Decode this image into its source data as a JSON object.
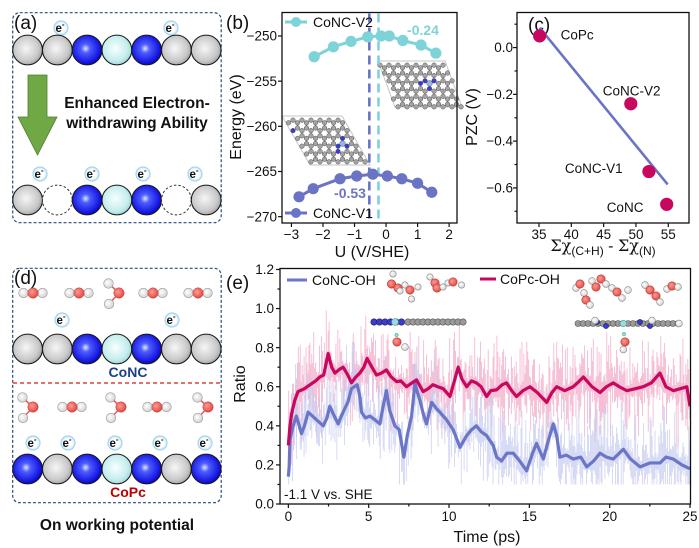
{
  "panels": {
    "a": "(a)",
    "b": "(b)",
    "c": "(c)",
    "d": "(d)",
    "e": "(e)"
  },
  "colors": {
    "frame": "#2b4c7e",
    "arrow": "#6fa845",
    "conc_label": "#1c3f8a",
    "copc_label": "#c00000",
    "divider": "#d9443a"
  },
  "panel_a": {
    "electron": {
      "symbol": "e",
      "charge": "-"
    },
    "top_row": [
      "gray",
      "gray",
      "blue",
      "cyan",
      "blue",
      "gray",
      "gray"
    ],
    "bottom_row": [
      "gray",
      "vacancy",
      "blue",
      "cyan",
      "blue",
      "vacancy",
      "gray"
    ],
    "top_electrons": 2,
    "bottom_electrons": 4,
    "caption_line1": "Enhanced Electron-",
    "caption_line2": "withdrawing Ability"
  },
  "panel_d": {
    "electron": {
      "symbol": "e",
      "charge": "-"
    },
    "top_row": [
      "gray",
      "gray",
      "blue",
      "cyan",
      "blue",
      "gray",
      "gray"
    ],
    "bottom_row": [
      "blue",
      "gray",
      "blue",
      "cyan",
      "blue",
      "gray",
      "blue"
    ],
    "top_waters": [
      "linear",
      "linear",
      "bent",
      "linear",
      "linear"
    ],
    "bottom_waters": [
      "bent",
      "linear",
      "bent",
      "linear",
      "bent"
    ],
    "top_electrons": 2,
    "bottom_electrons": 5,
    "top_label": "CoNC",
    "bottom_label": "CoPc",
    "caption": "On working potential"
  },
  "chart_data": [
    {
      "panel": "(b)",
      "type": "line",
      "title": "",
      "xlabel": "U (V/SHE)",
      "ylabel": "Energy (eV)",
      "xlim": [
        -3.3,
        2.25
      ],
      "ylim": [
        -270.7,
        -247.4
      ],
      "xticks": [
        -3,
        -2,
        -1,
        0,
        1,
        2
      ],
      "xticklabels": [
        "−3",
        "−2",
        "−1",
        "0",
        "1",
        "2"
      ],
      "yticks": [
        -250,
        -255,
        -260,
        -265,
        -270
      ],
      "yticklabels": [
        "−250",
        "−255",
        "−260",
        "−265",
        "−270"
      ],
      "grid": false,
      "series": [
        {
          "name": "CoNC-V2",
          "color": "#7ed3d9",
          "x": [
            -2.28,
            -1.67,
            -1.11,
            -0.58,
            -0.16,
            0.1,
            0.53,
            1.11,
            1.58
          ],
          "y": [
            -252.3,
            -251.2,
            -250.6,
            -250.1,
            -250.0,
            -250.0,
            -250.5,
            -251.0,
            -251.9
          ]
        },
        {
          "name": "CoNC-V1",
          "color": "#6b74c4",
          "x": [
            -2.76,
            -2.31,
            -1.46,
            -0.93,
            -0.42,
            0.04,
            0.5,
            1.0,
            1.45
          ],
          "y": [
            -267.8,
            -266.9,
            -265.8,
            -265.5,
            -265.3,
            -265.5,
            -265.8,
            -266.3,
            -267.3
          ]
        }
      ],
      "vlines": [
        {
          "x": -0.53,
          "label": "-0.53",
          "color": "#6b74c4"
        },
        {
          "x": -0.24,
          "label": "-0.24",
          "color": "#7ed3d9"
        }
      ],
      "legend": "top-left (CoNC-V2), bottom-left (CoNC-V1)"
    },
    {
      "panel": "(c)",
      "type": "scatter",
      "title": "",
      "xlabel": {
        "sum1": "Σχ",
        "sub1": "(C+H)",
        "minus": " - ",
        "sum2": "Σχ",
        "sub2": "(N)"
      },
      "ylabel": "PZC (V)",
      "xlim": [
        31.6,
        58.2
      ],
      "ylim": [
        -0.75,
        0.15
      ],
      "xticks": [
        35,
        40,
        45,
        50,
        55
      ],
      "xticklabels": [
        "35",
        "40",
        "45",
        "50",
        "55"
      ],
      "yticks": [
        0.0,
        -0.2,
        -0.4,
        -0.6
      ],
      "yticklabels": [
        "0.0",
        "−0.2",
        "−0.4",
        "−0.6"
      ],
      "yminor": [
        0.1,
        -0.1,
        -0.3,
        -0.5,
        -0.7
      ],
      "grid": false,
      "point_color": "#c8075e",
      "points": [
        {
          "label": "CoPc",
          "x": 35.1,
          "y": 0.05
        },
        {
          "label": "CoNC-V2",
          "x": 49.2,
          "y": -0.24
        },
        {
          "label": "CoNC-V1",
          "x": 52.0,
          "y": -0.53
        },
        {
          "label": "CoNC",
          "x": 54.75,
          "y": -0.67
        }
      ],
      "fit_line": {
        "x": [
          35.1,
          54.9
        ],
        "y": [
          0.085,
          -0.585
        ],
        "color": "#6b74c4"
      }
    },
    {
      "panel": "(e)",
      "type": "line",
      "title": "",
      "xlabel": "Time (ps)",
      "ylabel": "Ratio",
      "xlim": [
        -0.52,
        25.03
      ],
      "ylim": [
        0,
        1.205
      ],
      "xticks": [
        0,
        5,
        10,
        15,
        20,
        25
      ],
      "xticklabels": [
        "0",
        "5",
        "10",
        "15",
        "20",
        "25"
      ],
      "xminor": [
        2.5,
        7.5,
        12.5,
        17.5,
        22.5
      ],
      "yticks": [
        0.0,
        0.2,
        0.4,
        0.6,
        0.8,
        1.0,
        1.2
      ],
      "yticklabels": [
        "0.0",
        "0.2",
        "0.4",
        "0.6",
        "0.8",
        "1.0",
        "1.2"
      ],
      "yminor": [
        0.1,
        0.3,
        0.5,
        0.7,
        0.9,
        1.1
      ],
      "grid": false,
      "annotation": "-1.1 V vs. SHE",
      "legend": "top",
      "series": [
        {
          "name": "CoNC-OH",
          "color": "#6b76c6",
          "raw_color": "#c3c9ef",
          "t": [
            0,
            0.05,
            0.1,
            0.3,
            0.5,
            0.82,
            1.0,
            1.23,
            1.5,
            1.76,
            2.17,
            2.4,
            2.58,
            2.8,
            3.1,
            3.3,
            3.52,
            3.7,
            3.93,
            4.1,
            4.29,
            4.45,
            4.55,
            4.8,
            5.07,
            5.4,
            5.7,
            5.9,
            6.1,
            6.3,
            6.63,
            6.9,
            7.19,
            7.4,
            7.67,
            7.88,
            8.0,
            8.19,
            8.4,
            8.6,
            8.92,
            9.2,
            9.43,
            9.85,
            10.26,
            10.68,
            11.1,
            11.4,
            11.7,
            12.0,
            12.34,
            12.75,
            12.96,
            13.27,
            13.6,
            14.0,
            14.4,
            14.83,
            15.2,
            15.45,
            15.87,
            16.2,
            16.49,
            16.7,
            16.9,
            17.3,
            17.73,
            18.2,
            18.57,
            19.0,
            19.4,
            19.8,
            20.22,
            20.85,
            21.3,
            21.89,
            22.5,
            23.13,
            23.5,
            23.96,
            24.5,
            25.0
          ],
          "ratio": [
            0.14,
            0.19,
            0.33,
            0.4,
            0.45,
            0.36,
            0.4,
            0.47,
            0.45,
            0.43,
            0.4,
            0.44,
            0.5,
            0.46,
            0.41,
            0.45,
            0.49,
            0.52,
            0.59,
            0.6,
            0.61,
            0.55,
            0.47,
            0.44,
            0.45,
            0.43,
            0.41,
            0.5,
            0.58,
            0.48,
            0.4,
            0.38,
            0.24,
            0.35,
            0.45,
            0.62,
            0.58,
            0.53,
            0.46,
            0.41,
            0.52,
            0.49,
            0.47,
            0.43,
            0.38,
            0.29,
            0.35,
            0.38,
            0.4,
            0.37,
            0.35,
            0.3,
            0.24,
            0.22,
            0.26,
            0.26,
            0.22,
            0.17,
            0.26,
            0.31,
            0.23,
            0.33,
            0.41,
            0.35,
            0.24,
            0.25,
            0.23,
            0.24,
            0.19,
            0.22,
            0.26,
            0.24,
            0.23,
            0.28,
            0.23,
            0.19,
            0.21,
            0.21,
            0.24,
            0.23,
            0.2,
            0.18
          ]
        },
        {
          "name": "CoPc-OH",
          "color": "#c8075e",
          "raw_color": "#f2a2c2",
          "t": [
            0,
            0.1,
            0.2,
            0.4,
            0.6,
            1.0,
            1.34,
            1.7,
            1.96,
            2.2,
            2.48,
            2.7,
            2.9,
            3.2,
            3.41,
            3.7,
            3.93,
            4.2,
            4.45,
            4.7,
            4.9,
            5.2,
            5.49,
            5.8,
            6.1,
            6.4,
            6.74,
            7.0,
            7.36,
            7.7,
            7.98,
            8.39,
            8.7,
            9.0,
            9.3,
            9.64,
            10.06,
            10.3,
            10.57,
            10.8,
            11.1,
            11.4,
            11.7,
            12.0,
            12.34,
            12.6,
            12.96,
            13.3,
            13.58,
            13.9,
            14.2,
            14.6,
            15.04,
            15.5,
            16.08,
            16.4,
            16.7,
            17.2,
            17.73,
            18.0,
            18.36,
            18.9,
            19.4,
            19.8,
            20.22,
            20.6,
            21.06,
            21.6,
            22.09,
            22.6,
            23.13,
            23.5,
            23.96,
            24.4,
            24.8,
            25.0
          ],
          "ratio": [
            0.3,
            0.4,
            0.46,
            0.53,
            0.575,
            0.59,
            0.61,
            0.63,
            0.65,
            0.66,
            0.77,
            0.7,
            0.67,
            0.69,
            0.7,
            0.66,
            0.62,
            0.65,
            0.67,
            0.7,
            0.745,
            0.7,
            0.66,
            0.67,
            0.686,
            0.65,
            0.626,
            0.63,
            0.6,
            0.62,
            0.635,
            0.575,
            0.59,
            0.61,
            0.6,
            0.59,
            0.55,
            0.62,
            0.7,
            0.64,
            0.6,
            0.63,
            0.62,
            0.6,
            0.55,
            0.58,
            0.584,
            0.61,
            0.62,
            0.58,
            0.55,
            0.58,
            0.6,
            0.57,
            0.52,
            0.57,
            0.6,
            0.58,
            0.6,
            0.62,
            0.65,
            0.6,
            0.57,
            0.6,
            0.62,
            0.6,
            0.58,
            0.59,
            0.6,
            0.62,
            0.67,
            0.6,
            0.58,
            0.59,
            0.6,
            0.5
          ]
        }
      ]
    }
  ]
}
